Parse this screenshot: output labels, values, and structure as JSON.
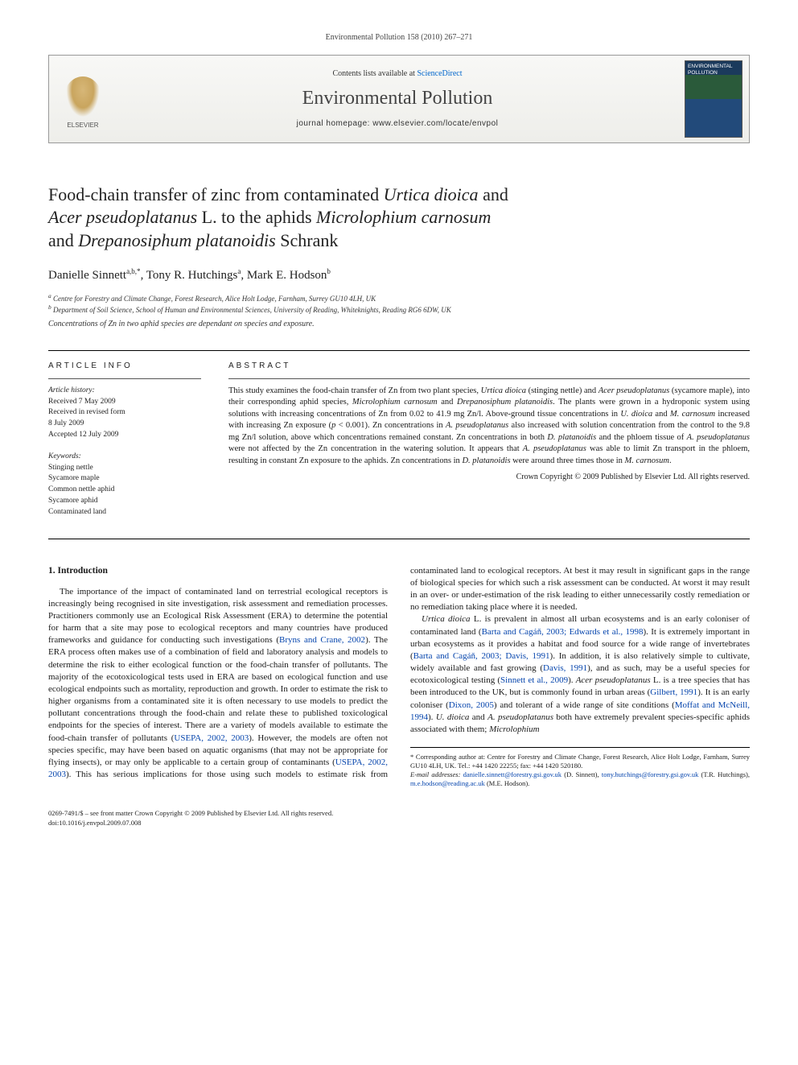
{
  "colors": {
    "link": "#0645ad",
    "text": "#1a1a1a",
    "rule": "#000000",
    "banner_bg_top": "#f8f8f6",
    "banner_bg_bot": "#eeeeea"
  },
  "header": {
    "citation": "Environmental Pollution 158 (2010) 267–271"
  },
  "banner": {
    "contents_prefix": "Contents lists available at ",
    "contents_link": "ScienceDirect",
    "journal": "Environmental Pollution",
    "homepage_label": "journal homepage: ",
    "homepage_url": "www.elsevier.com/locate/envpol",
    "publisher_label": "ELSEVIER",
    "cover_label": "ENVIRONMENTAL POLLUTION"
  },
  "title": {
    "line1_a": "Food-chain transfer of zinc from contaminated ",
    "line1_b": "Urtica dioica",
    "line1_c": " and",
    "line2_a": "Acer pseudoplatanus",
    "line2_b": " L. to the aphids ",
    "line2_c": "Microlophium carnosum",
    "line3_a": "and ",
    "line3_b": "Drepanosiphum platanoidis",
    "line3_c": " Schrank"
  },
  "authors": {
    "a1_name": "Danielle Sinnett",
    "a1_sup": "a,b,*",
    "a2_name": "Tony R. Hutchings",
    "a2_sup": "a",
    "a3_name": "Mark E. Hodson",
    "a3_sup": "b"
  },
  "affiliations": {
    "a": "Centre for Forestry and Climate Change, Forest Research, Alice Holt Lodge, Farnham, Surrey GU10 4LH, UK",
    "b": "Department of Soil Science, School of Human and Environmental Sciences, University of Reading, Whiteknights, Reading RG6 6DW, UK"
  },
  "summary": "Concentrations of Zn in two aphid species are dependant on species and exposure.",
  "article_info": {
    "heading": "article info",
    "history_label": "Article history:",
    "received": "Received 7 May 2009",
    "revised": "Received in revised form",
    "revised_date": "8 July 2009",
    "accepted": "Accepted 12 July 2009",
    "keywords_label": "Keywords:",
    "keywords": [
      "Stinging nettle",
      "Sycamore maple",
      "Common nettle aphid",
      "Sycamore aphid",
      "Contaminated land"
    ]
  },
  "abstract": {
    "heading": "abstract",
    "t1": "This study examines the food-chain transfer of Zn from two plant species, ",
    "t2": "Urtica dioica",
    "t3": " (stinging nettle) and ",
    "t4": "Acer pseudoplatanus",
    "t5": " (sycamore maple), into their corresponding aphid species, ",
    "t6": "Microlophium carnosum",
    "t7": " and ",
    "t8": "Drepanosiphum platanoidis",
    "t9": ". The plants were grown in a hydroponic system using solutions with increasing concentrations of Zn from 0.02 to 41.9 mg Zn/l. Above-ground tissue concentrations in ",
    "t10": "U. dioica",
    "t11": " and ",
    "t12": "M. carnosum",
    "t13": " increased with increasing Zn exposure (",
    "t14": "p",
    "t15": " < 0.001). Zn concentrations in ",
    "t16": "A. pseudoplatanus",
    "t17": " also increased with solution concentration from the control to the 9.8 mg Zn/l solution, above which concentrations remained constant. Zn concentrations in both ",
    "t18": "D. platanoidis",
    "t19": " and the phloem tissue of ",
    "t20": "A. pseudoplatanus",
    "t21": " were not affected by the Zn concentration in the watering solution. It appears that ",
    "t22": "A. pseudoplatanus",
    "t23": " was able to limit Zn transport in the phloem, resulting in constant Zn exposure to the aphids. Zn concentrations in ",
    "t24": "D. platanoidis",
    "t25": " were around three times those in ",
    "t26": "M. carnosum",
    "t27": ".",
    "copyright": "Crown Copyright © 2009 Published by Elsevier Ltd. All rights reserved."
  },
  "body": {
    "sec1_head": "1. Introduction",
    "p1_a": "The importance of the impact of contaminated land on terrestrial ecological receptors is increasingly being recognised in site investigation, risk assessment and remediation processes. Practitioners commonly use an Ecological Risk Assessment (ERA) to determine the potential for harm that a site may pose to ecological receptors and many countries have produced frameworks and guidance for conducting such investigations (",
    "p1_c1": "Bryns and Crane, 2002",
    "p1_b": "). The ERA process often makes use of a combination of field and laboratory analysis and models to determine the risk to either ecological function or the food-chain transfer of pollutants. The majority of the ecotoxicological tests used in ERA are based on ecological function and use ecological endpoints such as mortality, reproduction and growth. In order to estimate the risk to higher organisms from a contaminated site it is often necessary to use models to predict the pollutant concentrations through the food-chain and relate these to published toxicological endpoints for the",
    "p1c_a": "species of interest. There are a variety of models available to estimate the food-chain transfer of pollutants (",
    "p1c_c1": "USEPA, 2002, 2003",
    "p1c_b": "). However, the models are often not species specific, may have been based on aquatic organisms (that may not be appropriate for flying insects), or may only be applicable to a certain group of contaminants (",
    "p1c_c2": "USEPA, 2002, 2003",
    "p1c_c": "). This has serious implications for those using such models to estimate risk from contaminated land to ecological receptors. At best it may result in significant gaps in the range of biological species for which such a risk assessment can be conducted. At worst it may result in an over- or under-estimation of the risk leading to either unnecessarily costly remediation or no remediation taking place where it is needed.",
    "p2_a": "Urtica dioica",
    "p2_b": " L. is prevalent in almost all urban ecosystems and is an early coloniser of contaminated land (",
    "p2_c1": "Barta and Cagáň, 2003; Edwards et al., 1998",
    "p2_c": "). It is extremely important in urban ecosystems as it provides a habitat and food source for a wide range of invertebrates (",
    "p2_c2": "Barta and Cagáň, 2003; Davis, 1991",
    "p2_d": "). In addition, it is also relatively simple to cultivate, widely available and fast growing (",
    "p2_c3": "Davis, 1991",
    "p2_e": "), and as such, may be a useful species for ecotoxicological testing (",
    "p2_c4": "Sinnett et al., 2009",
    "p2_f": "). ",
    "p2_g": "Acer pseudoplatanus",
    "p2_h": " L. is a tree species that has been introduced to the UK, but is commonly found in urban areas (",
    "p2_c5": "Gilbert, 1991",
    "p2_i": "). It is an early coloniser (",
    "p2_c6": "Dixon, 2005",
    "p2_j": ") and tolerant of a wide range of site conditions (",
    "p2_c7": "Moffat and McNeill, 1994",
    "p2_k": "). ",
    "p2_l": "U. dioica",
    "p2_m": " and ",
    "p2_n": "A. pseudoplatanus",
    "p2_o": " both have extremely prevalent species-specific aphids associated with them; ",
    "p2_p": "Microlophium"
  },
  "footnote": {
    "corr_label": "* Corresponding author at: Centre for Forestry and Climate Change, Forest Research, Alice Holt Lodge, Farnham, Surrey GU10 4LH, UK. Tel.: +44 1420 22255; fax: +44 1420 520180.",
    "email_label": "E-mail addresses:",
    "e1": "danielle.sinnett@forestry.gsi.gov.uk",
    "e1_name": " (D. Sinnett), ",
    "e2": "tony.hutchings@forestry.gsi.gov.uk",
    "e2_name": " (T.R. Hutchings), ",
    "e3": "m.e.hodson@reading.ac.uk",
    "e3_name": " (M.E. Hodson)."
  },
  "footer": {
    "line1": "0269-7491/$ – see front matter Crown Copyright © 2009 Published by Elsevier Ltd. All rights reserved.",
    "line2": "doi:10.1016/j.envpol.2009.07.008"
  }
}
